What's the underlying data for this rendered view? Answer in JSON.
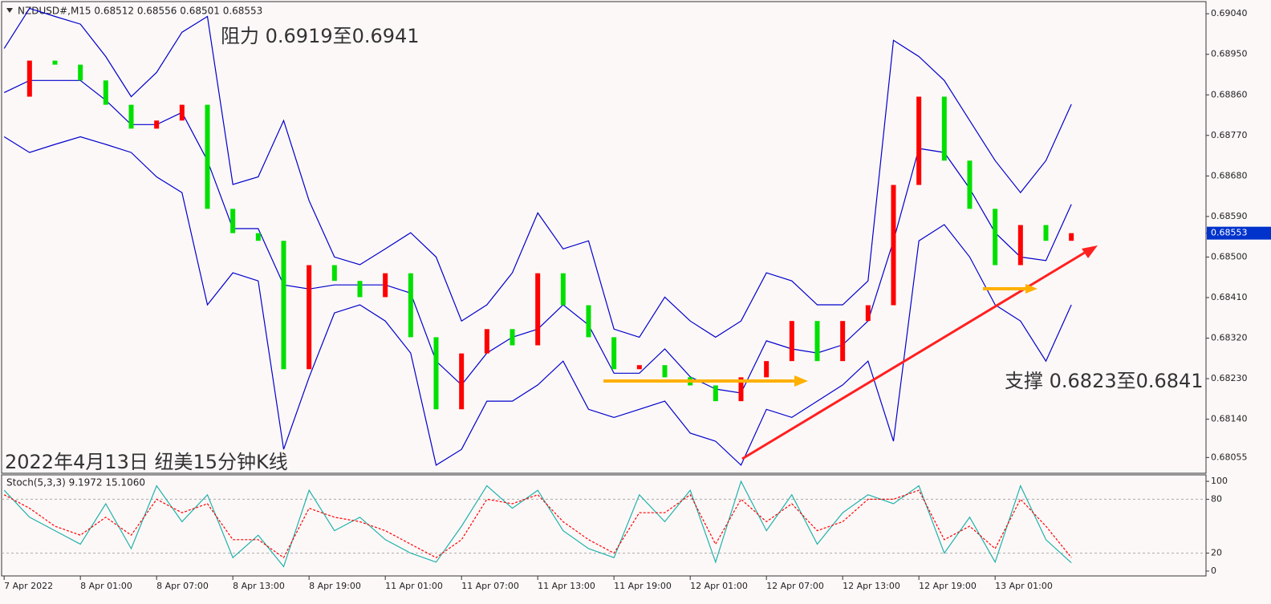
{
  "chart_data": [
    {
      "type": "candlestick",
      "header": "NZDUSD#,M15  0.68512 0.68556 0.68501 0.68553",
      "annotations": [
        "阻力 0.6919至0.6941",
        "支撑 0.6823至0.6841",
        "2022年4月13日 纽美15分钟K线"
      ],
      "last_price": {
        "value": 0.68553,
        "label": "0.68553"
      },
      "x": [
        0,
        2,
        4,
        6,
        8,
        10,
        12,
        14,
        16,
        18,
        20,
        22,
        24,
        26,
        28,
        30,
        32,
        34,
        36,
        38,
        40,
        42,
        44,
        46,
        48,
        50,
        52,
        54,
        56,
        58,
        60,
        62,
        64,
        66,
        68,
        70,
        72,
        74,
        76,
        78,
        80,
        82,
        84
      ],
      "values": [
        0.68856,
        0.68936,
        0.68927,
        0.68892,
        0.68838,
        0.68785,
        0.68803,
        0.68838,
        0.68607,
        0.68553,
        0.68536,
        0.68251,
        0.68482,
        0.68447,
        0.68411,
        0.68464,
        0.68322,
        0.68162,
        0.68286,
        0.6834,
        0.68304,
        0.68464,
        0.68393,
        0.68322,
        0.68251,
        0.6826,
        0.68233,
        0.68215,
        0.6818,
        0.68233,
        0.68269,
        0.68358,
        0.68269,
        0.68358,
        0.68393,
        0.6866,
        0.68856,
        0.68714,
        0.68607,
        0.68482,
        0.68571,
        0.68536,
        0.68553
      ],
      "up_color": "#ff0000",
      "down_color": "#00e000",
      "bands": {
        "color": "#0000cc",
        "upper": [
          0.68963,
          0.69052,
          0.69034,
          0.69017,
          0.68945,
          0.68856,
          0.6891,
          0.68999,
          0.69034,
          0.68661,
          0.68678,
          0.68803,
          0.68625,
          0.685,
          0.68483,
          0.68518,
          0.68554,
          0.685,
          0.68358,
          0.68394,
          0.68465,
          0.68598,
          0.68518,
          0.68536,
          0.6834,
          0.68322,
          0.68411,
          0.68358,
          0.68322,
          0.68358,
          0.68465,
          0.68447,
          0.68394,
          0.68394,
          0.68447,
          0.68981,
          0.68945,
          0.68892,
          0.68803,
          0.68714,
          0.68643,
          0.68714,
          0.68839
        ],
        "middle": [
          0.68865,
          0.68892,
          0.68892,
          0.68892,
          0.68848,
          0.68794,
          0.68794,
          0.68821,
          0.68714,
          0.68563,
          0.68563,
          0.68438,
          0.68429,
          0.68438,
          0.68438,
          0.68438,
          0.6842,
          0.68269,
          0.68216,
          0.68287,
          0.68322,
          0.6834,
          0.68394,
          0.68349,
          0.68242,
          0.68242,
          0.68296,
          0.68234,
          0.68207,
          0.68198,
          0.68314,
          0.68296,
          0.68287,
          0.68305,
          0.68358,
          0.68536,
          0.68741,
          0.68732,
          0.68652,
          0.68554,
          0.685,
          0.68492,
          0.68617
        ],
        "lower": [
          0.68767,
          0.68732,
          0.6875,
          0.68767,
          0.6875,
          0.68732,
          0.68678,
          0.68643,
          0.68394,
          0.68465,
          0.68447,
          0.68073,
          0.68233,
          0.68376,
          0.68394,
          0.68358,
          0.68287,
          0.68038,
          0.68073,
          0.6818,
          0.6818,
          0.68216,
          0.68269,
          0.68162,
          0.68144,
          0.68162,
          0.6818,
          0.68109,
          0.68091,
          0.68038,
          0.68162,
          0.68144,
          0.6818,
          0.68216,
          0.68269,
          0.68091,
          0.68536,
          0.68572,
          0.685,
          0.68394,
          0.68358,
          0.68269,
          0.68394
        ]
      },
      "xlim": [
        -0.2,
        94.6
      ],
      "ylim": [
        0.6802,
        0.69067
      ],
      "yticks": [
        {
          "value": 0.6904,
          "label": "0.69040"
        },
        {
          "value": 0.6895,
          "label": "0.68950"
        },
        {
          "value": 0.6886,
          "label": "0.68860"
        },
        {
          "value": 0.6877,
          "label": "0.68770"
        },
        {
          "value": 0.6868,
          "label": "0.68680"
        },
        {
          "value": 0.6859,
          "label": "0.68590"
        },
        {
          "value": 0.685,
          "label": "0.68500"
        },
        {
          "value": 0.6841,
          "label": "0.68410"
        },
        {
          "value": 0.6832,
          "label": "0.68320"
        },
        {
          "value": 0.6823,
          "label": "0.68230"
        },
        {
          "value": 0.6814,
          "label": "0.68140"
        },
        0.68055
      ]
    },
    {
      "type": "line",
      "header": "Stoch(5,3,3) 9.1972 15.1060",
      "x": [
        0,
        2,
        4,
        6,
        8,
        10,
        12,
        14,
        16,
        18,
        20,
        22,
        24,
        26,
        28,
        30,
        32,
        34,
        36,
        38,
        40,
        42,
        44,
        46,
        48,
        50,
        52,
        54,
        56,
        58,
        60,
        62,
        64,
        66,
        68,
        70,
        72,
        74,
        76,
        78,
        80,
        82,
        84
      ],
      "series": [
        {
          "color": "#20b2aa",
          "dashed": false,
          "values": [
            90,
            60,
            45,
            30,
            75,
            25,
            95,
            55,
            85,
            15,
            40,
            5,
            90,
            45,
            60,
            35,
            20,
            10,
            50,
            95,
            70,
            90,
            45,
            25,
            15,
            85,
            55,
            90,
            10,
            100,
            45,
            85,
            30,
            65,
            85,
            75,
            95,
            20,
            60,
            10,
            95,
            35,
            9.2
          ]
        },
        {
          "color": "#ff0000",
          "dashed": true,
          "values": [
            85,
            70,
            50,
            40,
            60,
            40,
            80,
            65,
            75,
            35,
            35,
            15,
            70,
            60,
            55,
            45,
            30,
            15,
            35,
            80,
            75,
            85,
            55,
            35,
            20,
            65,
            65,
            85,
            30,
            80,
            55,
            75,
            45,
            55,
            80,
            80,
            90,
            35,
            50,
            25,
            80,
            50,
            15.1
          ]
        }
      ],
      "xlim": [
        -0.2,
        94.6
      ],
      "ylim": [
        -5.4,
        106.3
      ],
      "yticks": [
        100,
        80,
        20,
        0
      ],
      "dashed_ticks": [
        80,
        20
      ],
      "xticks": [
        {
          "value": 0,
          "label": "7 Apr 2022"
        },
        {
          "value": 6,
          "label": "8 Apr 01:00"
        },
        {
          "value": 12,
          "label": "8 Apr 07:00"
        },
        {
          "value": 18,
          "label": "8 Apr 13:00"
        },
        {
          "value": 24,
          "label": "8 Apr 19:00"
        },
        {
          "value": 30,
          "label": "11 Apr 01:00"
        },
        {
          "value": 36,
          "label": "11 Apr 07:00"
        },
        {
          "value": 42,
          "label": "11 Apr 13:00"
        },
        {
          "value": 48,
          "label": "11 Apr 19:00"
        },
        {
          "value": 54,
          "label": "12 Apr 01:00"
        },
        {
          "value": 60,
          "label": "12 Apr 07:00"
        },
        {
          "value": 66,
          "label": "12 Apr 13:00"
        },
        {
          "value": 72,
          "label": "12 Apr 19:00"
        },
        {
          "value": 78,
          "label": "13 Apr 01:00"
        }
      ]
    }
  ]
}
